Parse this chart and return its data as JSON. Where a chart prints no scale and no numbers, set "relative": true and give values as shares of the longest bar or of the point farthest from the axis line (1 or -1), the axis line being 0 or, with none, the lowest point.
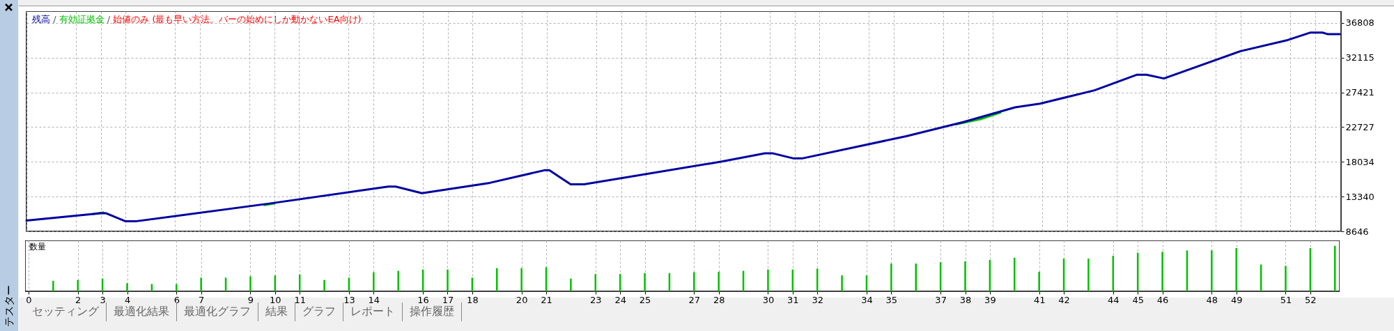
{
  "chart_data": [
    {
      "type": "line",
      "subtitle": "始値のみ (最も早い方法。バーの始めにしか動かないEA向け)",
      "legend": "top left",
      "grid": true,
      "tick_labels": "y",
      "line_style": "solid",
      "annotations": [
        "テスター",
        "/",
        "/"
      ],
      "xlim": [
        0,
        53.05
      ],
      "ylim": [
        8646,
        38400
      ],
      "xticks": [
        {
          "value": 0,
          "label": null
        },
        {
          "value": 2,
          "label": null
        },
        {
          "value": 3,
          "label": null
        },
        {
          "value": 4,
          "label": null
        },
        {
          "value": 6,
          "label": null
        },
        {
          "value": 7,
          "label": null
        },
        {
          "value": 9,
          "label": null
        },
        {
          "value": 10,
          "label": null
        },
        {
          "value": 11,
          "label": null
        },
        {
          "value": 13,
          "label": null
        },
        {
          "value": 14,
          "label": null
        },
        {
          "value": 16,
          "label": null
        },
        {
          "value": 17,
          "label": null
        },
        {
          "value": 18,
          "label": null
        },
        {
          "value": 20,
          "label": null
        },
        {
          "value": 21,
          "label": null
        },
        {
          "value": 23,
          "label": null
        },
        {
          "value": 24,
          "label": null
        },
        {
          "value": 25,
          "label": null
        },
        {
          "value": 27,
          "label": null
        },
        {
          "value": 28,
          "label": null
        },
        {
          "value": 30,
          "label": null
        },
        {
          "value": 31,
          "label": null
        },
        {
          "value": 32,
          "label": null
        },
        {
          "value": 34,
          "label": null
        },
        {
          "value": 35,
          "label": null
        },
        {
          "value": 37,
          "label": null
        },
        {
          "value": 38,
          "label": null
        },
        {
          "value": 39,
          "label": null
        },
        {
          "value": 41,
          "label": null
        },
        {
          "value": 42,
          "label": null
        },
        {
          "value": 44,
          "label": null
        },
        {
          "value": 45,
          "label": null
        },
        {
          "value": 46,
          "label": null
        },
        {
          "value": 48,
          "label": null
        },
        {
          "value": 49,
          "label": null
        },
        {
          "value": 51,
          "label": null
        },
        {
          "value": 52,
          "label": null
        }
      ],
      "yticks": [
        8646,
        13340,
        18034,
        22727,
        27421,
        32115,
        36808
      ],
      "series": [
        {
          "name": "残高",
          "color": "#0000a0",
          "x": [
            0,
            3,
            3.2,
            4,
            4.4,
            9.8,
            14.6,
            14.9,
            15.96,
            18.7,
            20.9,
            21.1,
            21.96,
            22.5,
            28.1,
            29.8,
            30.1,
            30.96,
            31.3,
            35.5,
            37.8,
            39.9,
            40.9,
            43.1,
            44.8,
            45.2,
            45.9,
            49,
            50.9,
            51.8,
            52.3,
            52.5,
            53
          ],
          "values": [
            10100,
            11100,
            11100,
            10000,
            10000,
            12400,
            14700,
            14700,
            13800,
            15200,
            16900,
            16900,
            15000,
            15000,
            18100,
            19200,
            19200,
            18500,
            18500,
            21500,
            23400,
            25400,
            25900,
            27700,
            29800,
            29800,
            29300,
            33000,
            34500,
            35500,
            35500,
            35300,
            35300
          ]
        },
        {
          "name": "有効証拠金",
          "color": "#00c000",
          "x": [
            2.7,
            3.1,
            3.2,
            9.6,
            10.0,
            10.1,
            37.5,
            38.5,
            39.3
          ],
          "values": [
            11000,
            11200,
            null,
            12200,
            12400,
            null,
            23100,
            23800,
            24700
          ]
        }
      ]
    },
    {
      "type": "bar",
      "relative": true,
      "ylabel": "数量",
      "grid": "x",
      "tick_labels": "x",
      "annotations": [
        "セッティング",
        "最適化結果",
        "最適化グラフ",
        "結果",
        "グラフ",
        "レポート",
        "操作履歴"
      ],
      "xlim": [
        0,
        53.05
      ],
      "xticks": [
        0,
        2,
        3,
        4,
        6,
        7,
        9,
        10,
        11,
        13,
        14,
        16,
        17,
        18,
        20,
        21,
        23,
        24,
        25,
        27,
        28,
        30,
        31,
        32,
        34,
        35,
        37,
        38,
        39,
        41,
        42,
        44,
        45,
        46,
        48,
        49,
        51,
        52
      ],
      "x": [
        1,
        2,
        3,
        4,
        5,
        6,
        7,
        8,
        9,
        10,
        11,
        12,
        13,
        14,
        15,
        16,
        17,
        18,
        19,
        20,
        21,
        22,
        23,
        24,
        25,
        26,
        27,
        28,
        29,
        30,
        31,
        32,
        33,
        34,
        35,
        36,
        37,
        38,
        39,
        40,
        41,
        42,
        43,
        44,
        45,
        46,
        47,
        48,
        49,
        50,
        51,
        52,
        53
      ],
      "series": [
        {
          "color": "#00c000",
          "values": [
            0.23,
            0.25,
            0.28,
            0.18,
            0.16,
            0.16,
            0.3,
            0.3,
            0.33,
            0.35,
            0.37,
            0.25,
            0.3,
            0.42,
            0.45,
            0.48,
            0.48,
            0.3,
            0.51,
            0.51,
            0.53,
            0.28,
            0.38,
            0.38,
            0.4,
            0.4,
            0.42,
            0.43,
            0.45,
            0.48,
            0.48,
            0.5,
            0.35,
            0.35,
            0.61,
            0.61,
            0.64,
            0.66,
            0.69,
            0.74,
            0.43,
            0.72,
            0.72,
            0.78,
            0.85,
            0.87,
            0.9,
            0.9,
            0.95,
            0.59,
            0.56,
            0.95,
            1
          ]
        }
      ]
    }
  ]
}
